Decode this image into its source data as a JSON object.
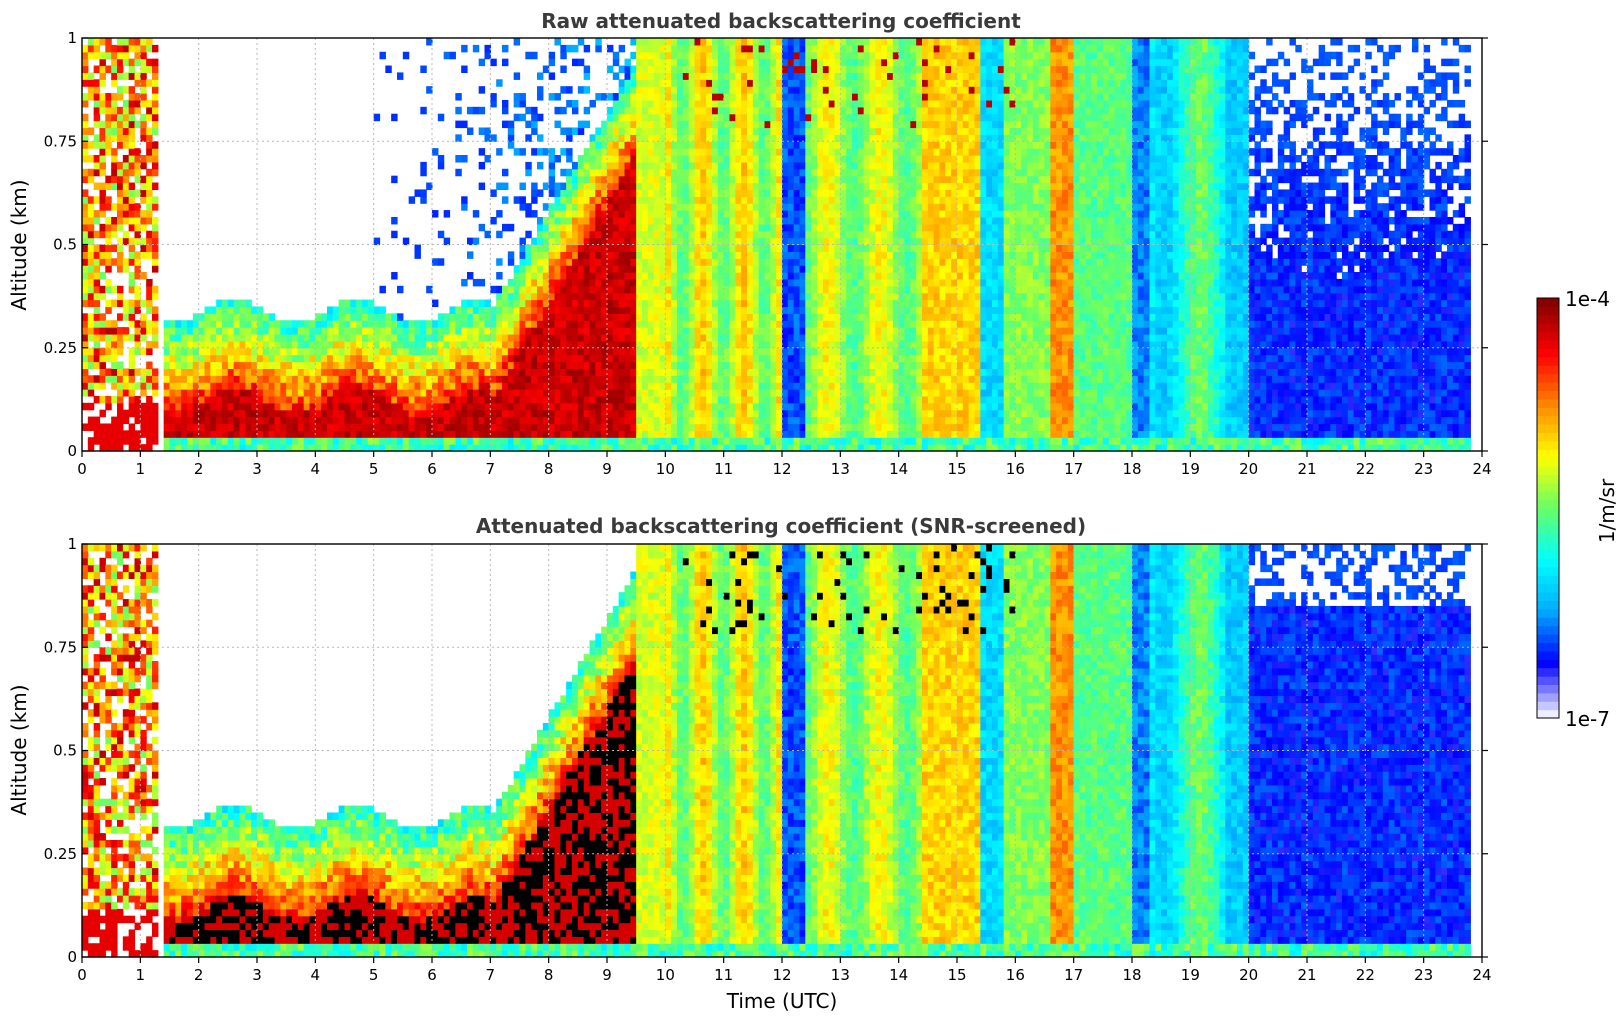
{
  "figure": {
    "background": "#ffffff"
  },
  "chart_data": [
    {
      "type": "heatmap",
      "title": "Raw attenuated backscattering coefficient",
      "xlabel": "",
      "ylabel": "Altitude (km)",
      "xlim": [
        0,
        24
      ],
      "ylim": [
        0,
        1
      ],
      "x_ticks": [
        "0",
        "1",
        "2",
        "3",
        "4",
        "5",
        "6",
        "7",
        "8",
        "9",
        "10",
        "11",
        "12",
        "13",
        "14",
        "15",
        "16",
        "17",
        "18",
        "19",
        "20",
        "21",
        "22",
        "23",
        "24"
      ],
      "y_ticks": [
        "0",
        "0.25",
        "0.5",
        "0.75",
        "1"
      ],
      "grid": true,
      "colorscale": "jet",
      "variant": "raw"
    },
    {
      "type": "heatmap",
      "title": "Attenuated backscattering coefficient (SNR-screened)",
      "xlabel": "Time (UTC)",
      "ylabel": "Altitude (km)",
      "xlim": [
        0,
        24
      ],
      "ylim": [
        0,
        1
      ],
      "x_ticks": [
        "0",
        "1",
        "2",
        "3",
        "4",
        "5",
        "6",
        "7",
        "8",
        "9",
        "10",
        "11",
        "12",
        "13",
        "14",
        "15",
        "16",
        "17",
        "18",
        "19",
        "20",
        "21",
        "22",
        "23",
        "24"
      ],
      "y_ticks": [
        "0",
        "0.25",
        "0.5",
        "0.75",
        "1"
      ],
      "grid": true,
      "colorscale": "jet",
      "variant": "screened"
    }
  ],
  "colorbar": {
    "label": "1/m/sr",
    "max_label": "1e-4",
    "min_label": "1e-7",
    "range": [
      1e-07,
      0.0001
    ],
    "scale": "log",
    "colors": [
      "#eeeeff",
      "#0000ff",
      "#00aaff",
      "#00ffff",
      "#66ff66",
      "#ffff00",
      "#ff8800",
      "#ff0000",
      "#880000"
    ]
  }
}
